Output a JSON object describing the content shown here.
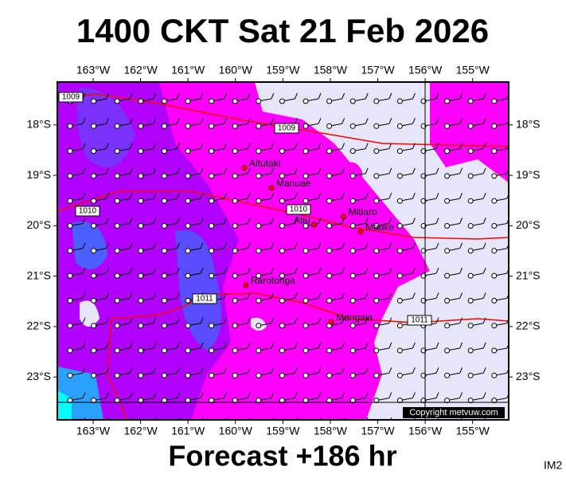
{
  "title": "1400 CKT Sat 21 Feb 2026",
  "footer": "Forecast +186 hr",
  "code": "IM2",
  "copyright": "Copyright metvuw.com",
  "map": {
    "xlim": [
      -163.755,
      -154.24
    ],
    "ylim": [
      -23.85,
      -17.15
    ],
    "xticks": [
      {
        "value": -163,
        "label": "163°W"
      },
      {
        "value": -162,
        "label": "162°W"
      },
      {
        "value": -161,
        "label": "161°W"
      },
      {
        "value": -160,
        "label": "160°W"
      },
      {
        "value": -159,
        "label": "159°W"
      },
      {
        "value": -158,
        "label": "158°W"
      },
      {
        "value": -157,
        "label": "157°W"
      },
      {
        "value": -156,
        "label": "156°W"
      },
      {
        "value": -155,
        "label": "155°W"
      }
    ],
    "yticks": [
      {
        "value": -18,
        "label": "18°S"
      },
      {
        "value": -19,
        "label": "19°S"
      },
      {
        "value": -20,
        "label": "20°S"
      },
      {
        "value": -21,
        "label": "21°S"
      },
      {
        "value": -22,
        "label": "22°S"
      },
      {
        "value": -23,
        "label": "23°S"
      }
    ],
    "places": [
      {
        "name": "Aitutaki",
        "lon": -159.81,
        "lat": -18.85
      },
      {
        "name": "Manuae",
        "lon": -159.24,
        "lat": -19.25
      },
      {
        "name": "Mitiaro",
        "lon": -157.72,
        "lat": -19.82
      },
      {
        "name": "Atiu",
        "lon": -158.34,
        "lat": -19.98
      },
      {
        "name": "Mauke",
        "lon": -157.36,
        "lat": -20.12
      },
      {
        "name": "Rarotonga",
        "lon": -159.78,
        "lat": -21.18
      },
      {
        "name": "Mangaia",
        "lon": -157.98,
        "lat": -21.91
      }
    ],
    "isobar_labels": [
      1009,
      1009,
      1010,
      1010,
      1011,
      1011
    ]
  }
}
